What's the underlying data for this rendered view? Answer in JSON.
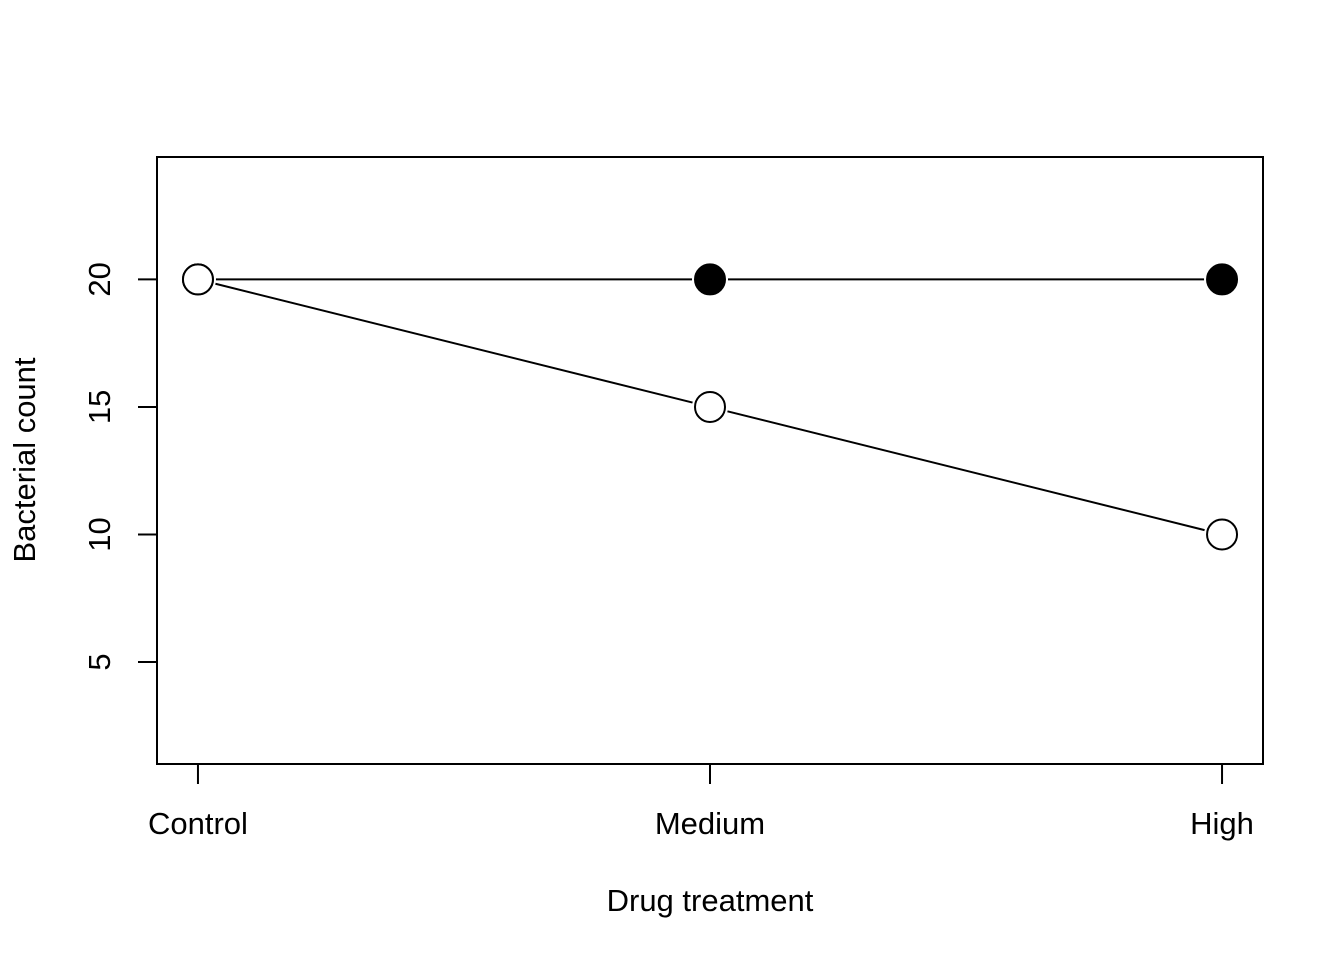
{
  "chart_data": {
    "type": "line",
    "title": "",
    "xlabel": "Drug treatment",
    "ylabel": "Bacterial count",
    "categories": [
      "Control",
      "Medium",
      "High"
    ],
    "y_ticks": [
      "5",
      "10",
      "15",
      "20"
    ],
    "ylim": [
      1,
      24.8
    ],
    "grid": false,
    "legend": "none",
    "series": [
      {
        "values": [
          20,
          20,
          20
        ],
        "marker": "filled-circle",
        "color": "#000000"
      },
      {
        "values": [
          20,
          15,
          10
        ],
        "marker": "open-circle",
        "color": "#000000"
      }
    ]
  }
}
